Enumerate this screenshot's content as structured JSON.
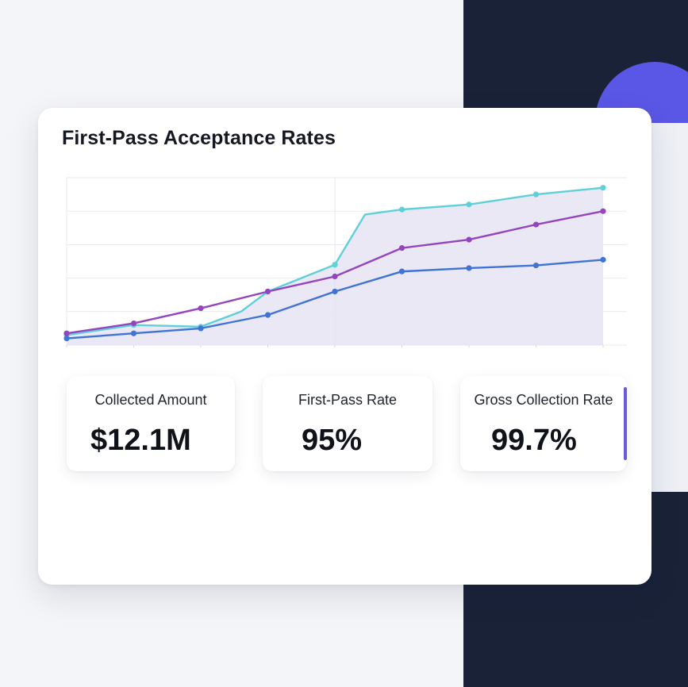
{
  "card": {
    "title": "First-Pass Acceptance Rates"
  },
  "stats": [
    {
      "label": "Collected Amount",
      "value": "$12.1M"
    },
    {
      "label": "First-Pass Rate",
      "value": "95%"
    },
    {
      "label": "Gross Collection Rate",
      "value": "99.7%"
    }
  ],
  "colors": {
    "teal": "#5fd0d8",
    "purple": "#9445be",
    "blue": "#3f73d6",
    "area_fill": "#e6e4f3",
    "accent": "#6a5bd9",
    "dark_panel": "#1a2238",
    "circle": "#5b57e6"
  },
  "chart_data": {
    "type": "line",
    "title": "First-Pass Acceptance Rates",
    "xlabel": "",
    "ylabel": "",
    "x": [
      0,
      1,
      2,
      3,
      4,
      5,
      6,
      7,
      8
    ],
    "ylim": [
      0,
      5
    ],
    "grid": true,
    "legend": "none",
    "series": [
      {
        "color_key": "teal",
        "fill": true,
        "values": [
          0.3,
          0.6,
          0.55,
          1.6,
          2.4,
          4.05,
          4.2,
          4.5,
          4.7
        ],
        "extra_points": [
          [
            2.6,
            1.0
          ],
          [
            4.45,
            3.9
          ]
        ]
      },
      {
        "color_key": "purple",
        "fill": false,
        "values": [
          0.35,
          0.65,
          1.1,
          1.6,
          2.05,
          2.9,
          3.15,
          3.6,
          4.0
        ]
      },
      {
        "color_key": "blue",
        "fill": false,
        "values": [
          0.2,
          0.35,
          0.5,
          0.9,
          1.6,
          2.2,
          2.3,
          2.38,
          2.55
        ]
      }
    ]
  }
}
